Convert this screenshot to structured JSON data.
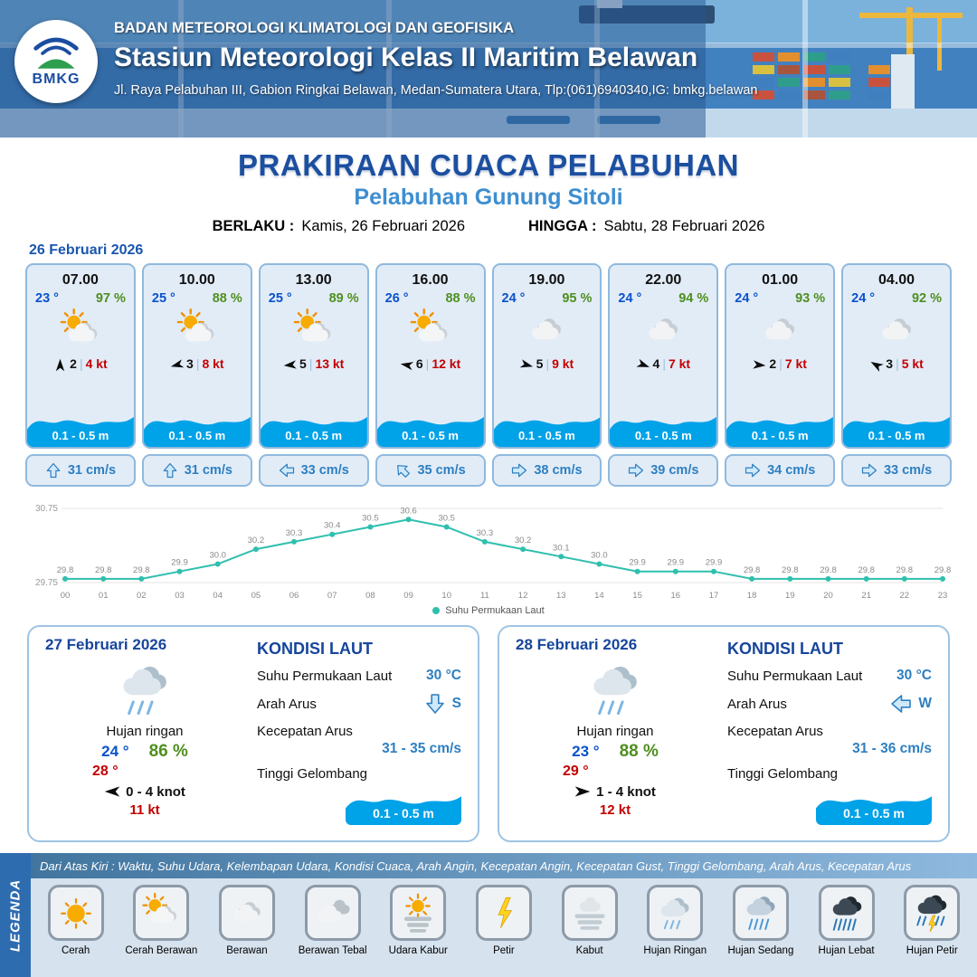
{
  "header": {
    "logo_label": "BMKG",
    "org": "BADAN METEOROLOGI KLIMATOLOGI DAN GEOFISIKA",
    "station": "Stasiun Meteorologi Kelas II Maritim Belawan",
    "address": "Jl. Raya Pelabuhan III, Gabion Ringkai Belawan, Medan-Sumatera Utara, Tlp:(061)6940340,IG: bmkg.belawan"
  },
  "title": {
    "main": "PRAKIRAAN CUACA PELABUHAN",
    "subtitle": "Pelabuhan Gunung Sitoli",
    "valid_from_label": "BERLAKU :",
    "valid_from": "Kamis, 26 Februari 2026",
    "valid_to_label": "HINGGA :",
    "valid_to": "Sabtu, 28 Februari 2026"
  },
  "hourly": {
    "date": "26 Februari 2026",
    "cards": [
      {
        "time": "07.00",
        "temp": "23 °",
        "humidity": "97 %",
        "icon": "sun-cloud",
        "wind_deg": 0,
        "wind_speed": "2",
        "gust": "4 kt",
        "wave": "0.1 - 0.5 m",
        "current_deg": 0,
        "current": "31 cm/s"
      },
      {
        "time": "10.00",
        "temp": "25 °",
        "humidity": "88 %",
        "icon": "sun-cloud",
        "wind_deg": 255,
        "wind_speed": "3",
        "gust": "8 kt",
        "wave": "0.1 - 0.5 m",
        "current_deg": 0,
        "current": "31 cm/s"
      },
      {
        "time": "13.00",
        "temp": "25 °",
        "humidity": "89 %",
        "icon": "sun-cloud",
        "wind_deg": 265,
        "wind_speed": "5",
        "gust": "13 kt",
        "wave": "0.1 - 0.5 m",
        "current_deg": 270,
        "current": "33 cm/s"
      },
      {
        "time": "16.00",
        "temp": "26 °",
        "humidity": "88 %",
        "icon": "sun-cloud",
        "wind_deg": 280,
        "wind_speed": "6",
        "gust": "12 kt",
        "wave": "0.1 - 0.5 m",
        "current_deg": 315,
        "current": "35 cm/s"
      },
      {
        "time": "19.00",
        "temp": "24 °",
        "humidity": "95 %",
        "icon": "cloud",
        "wind_deg": 105,
        "wind_speed": "5",
        "gust": "9 kt",
        "wave": "0.1 - 0.5 m",
        "current_deg": 90,
        "current": "38 cm/s"
      },
      {
        "time": "22.00",
        "temp": "24 °",
        "humidity": "94 %",
        "icon": "cloud",
        "wind_deg": 110,
        "wind_speed": "4",
        "gust": "7 kt",
        "wave": "0.1 - 0.5 m",
        "current_deg": 90,
        "current": "39 cm/s"
      },
      {
        "time": "01.00",
        "temp": "24 °",
        "humidity": "93 %",
        "icon": "cloud",
        "wind_deg": 95,
        "wind_speed": "2",
        "gust": "7 kt",
        "wave": "0.1 - 0.5 m",
        "current_deg": 90,
        "current": "34 cm/s"
      },
      {
        "time": "04.00",
        "temp": "24 °",
        "humidity": "92 %",
        "icon": "cloud",
        "wind_deg": 300,
        "wind_speed": "3",
        "gust": "5 kt",
        "wave": "0.1 - 0.5 m",
        "current_deg": 90,
        "current": "33 cm/s"
      }
    ]
  },
  "chart_data": {
    "type": "line",
    "series_name": "Suhu Permukaan Laut",
    "x": [
      "00",
      "01",
      "02",
      "03",
      "04",
      "05",
      "06",
      "07",
      "08",
      "09",
      "10",
      "11",
      "12",
      "13",
      "14",
      "15",
      "16",
      "17",
      "18",
      "19",
      "20",
      "21",
      "22",
      "23"
    ],
    "values": [
      29.8,
      29.8,
      29.8,
      29.9,
      30.0,
      30.2,
      30.3,
      30.4,
      30.5,
      30.6,
      30.5,
      30.3,
      30.2,
      30.1,
      30.0,
      29.9,
      29.9,
      29.9,
      29.8,
      29.8,
      29.8,
      29.8,
      29.8,
      29.8
    ],
    "ylim": [
      29.75,
      30.75
    ],
    "yticks": [
      29.75,
      30.75
    ],
    "line_color": "#2fbfae",
    "grid": true,
    "legend_position": "bottom"
  },
  "daily": [
    {
      "date": "27 Februari 2026",
      "condition": "Hujan ringan",
      "icon": "rain-light",
      "temp_min": "24 °",
      "humidity": "86 %",
      "temp_max": "28 °",
      "wind_deg": 270,
      "wind_range": "0 - 4 knot",
      "gust": "11 kt",
      "sea_title": "KONDISI LAUT",
      "sst_label": "Suhu Permukaan Laut",
      "sst": "30 °C",
      "current_dir_label": "Arah Arus",
      "current_deg": 180,
      "current_dir": "S",
      "current_speed_label": "Kecepatan Arus",
      "current_speed": "31 - 35 cm/s",
      "wave_label": "Tinggi Gelombang",
      "wave": "0.1 - 0.5 m"
    },
    {
      "date": "28 Februari 2026",
      "condition": "Hujan ringan",
      "icon": "rain-light",
      "temp_min": "23 °",
      "humidity": "88 %",
      "temp_max": "29 °",
      "wind_deg": 90,
      "wind_range": "1 - 4 knot",
      "gust": "12 kt",
      "sea_title": "KONDISI LAUT",
      "sst_label": "Suhu Permukaan Laut",
      "sst": "30 °C",
      "current_dir_label": "Arah Arus",
      "current_deg": 270,
      "current_dir": "W",
      "current_speed_label": "Kecepatan Arus",
      "current_speed": "31 - 36 cm/s",
      "wave_label": "Tinggi Gelombang",
      "wave": "0.1 - 0.5 m"
    }
  ],
  "legend": {
    "side_label": "LEGENDA",
    "note": "Dari Atas Kiri : Waktu, Suhu Udara, Kelembapan Udara, Kondisi Cuaca, Arah Angin, Kecepatan Angin, Kecepatan Gust, Tinggi Gelombang, Arah Arus, Kecepatan Arus",
    "items": [
      {
        "label": "Cerah",
        "icon": "sun"
      },
      {
        "label": "Cerah Berawan",
        "icon": "sun-cloud"
      },
      {
        "label": "Berawan",
        "icon": "cloud"
      },
      {
        "label": "Berawan Tebal",
        "icon": "clouds"
      },
      {
        "label": "Udara Kabur",
        "icon": "haze"
      },
      {
        "label": "Petir",
        "icon": "lightning"
      },
      {
        "label": "Kabut",
        "icon": "fog"
      },
      {
        "label": "Hujan Ringan",
        "icon": "rain-light"
      },
      {
        "label": "Hujan Sedang",
        "icon": "rain-med"
      },
      {
        "label": "Hujan Lebat",
        "icon": "rain-heavy"
      },
      {
        "label": "Hujan Petir",
        "icon": "rain-thunder"
      }
    ]
  }
}
